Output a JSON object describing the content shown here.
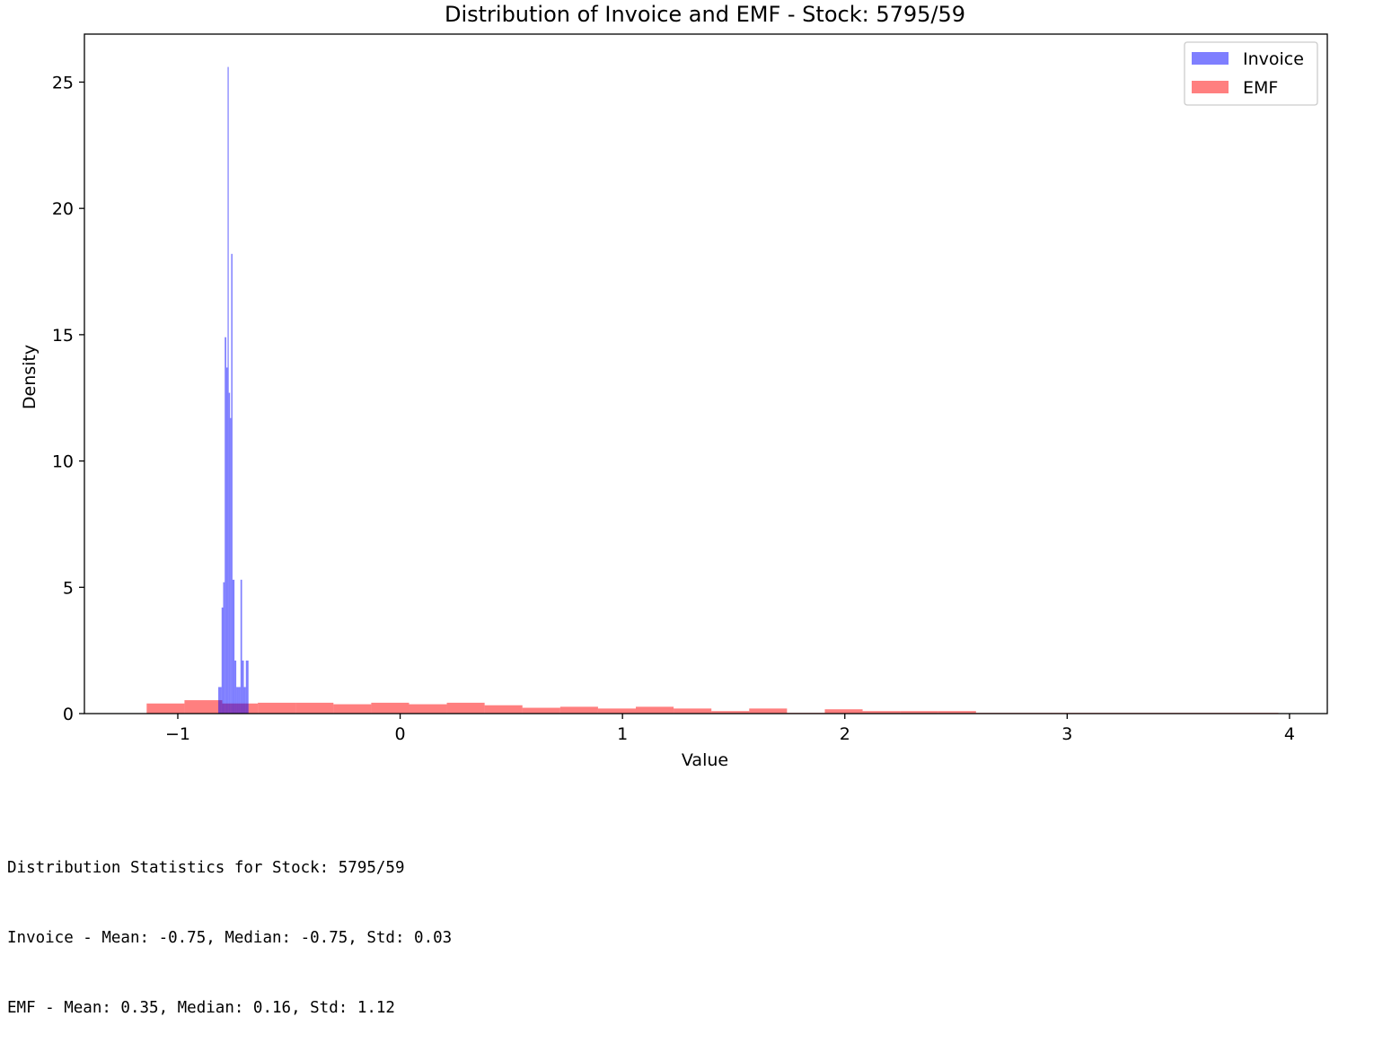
{
  "chart_data": {
    "type": "histogram",
    "title": "Distribution of Invoice and EMF - Stock: 5795/59",
    "xlabel": "Value",
    "ylabel": "Density",
    "xlim": [
      -1.42,
      4.17
    ],
    "ylim": [
      0,
      26.9
    ],
    "xticks": [
      -1,
      0,
      1,
      2,
      3,
      4
    ],
    "xtick_labels": [
      "−1",
      "0",
      "1",
      "2",
      "3",
      "4"
    ],
    "yticks": [
      0,
      5,
      10,
      15,
      20,
      25
    ],
    "ytick_labels": [
      "0",
      "5",
      "10",
      "15",
      "20",
      "25"
    ],
    "grid": false,
    "legend_position": "top-right",
    "series": [
      {
        "name": "Invoice",
        "color": "#0000ff",
        "opacity": 0.5,
        "bins": [
          [
            -0.818,
            -0.81,
            1.05
          ],
          [
            -0.81,
            -0.803,
            1.05
          ],
          [
            -0.803,
            -0.796,
            4.2
          ],
          [
            -0.796,
            -0.789,
            5.2
          ],
          [
            -0.789,
            -0.782,
            14.9
          ],
          [
            -0.782,
            -0.776,
            13.7
          ],
          [
            -0.776,
            -0.771,
            25.6
          ],
          [
            -0.771,
            -0.765,
            12.7
          ],
          [
            -0.765,
            -0.76,
            11.7
          ],
          [
            -0.76,
            -0.754,
            18.2
          ],
          [
            -0.754,
            -0.745,
            5.3
          ],
          [
            -0.745,
            -0.737,
            2.1
          ],
          [
            -0.737,
            -0.727,
            1.05
          ],
          [
            -0.727,
            -0.718,
            1.05
          ],
          [
            -0.718,
            -0.711,
            5.3
          ],
          [
            -0.711,
            -0.703,
            2.1
          ],
          [
            -0.703,
            -0.694,
            1.05
          ],
          [
            -0.694,
            -0.682,
            2.1
          ]
        ]
      },
      {
        "name": "EMF",
        "color": "#ff0000",
        "opacity": 0.5,
        "bins": [
          [
            -1.14,
            -0.97,
            0.4
          ],
          [
            -0.97,
            -0.8,
            0.53
          ],
          [
            -0.8,
            -0.64,
            0.4
          ],
          [
            -0.64,
            -0.47,
            0.43
          ],
          [
            -0.47,
            -0.3,
            0.43
          ],
          [
            -0.3,
            -0.13,
            0.37
          ],
          [
            -0.13,
            0.04,
            0.43
          ],
          [
            0.04,
            0.21,
            0.37
          ],
          [
            0.21,
            0.38,
            0.43
          ],
          [
            0.38,
            0.55,
            0.33
          ],
          [
            0.55,
            0.72,
            0.23
          ],
          [
            0.72,
            0.89,
            0.27
          ],
          [
            0.89,
            1.06,
            0.2
          ],
          [
            1.06,
            1.23,
            0.27
          ],
          [
            1.23,
            1.4,
            0.2
          ],
          [
            1.4,
            1.57,
            0.1
          ],
          [
            1.57,
            1.74,
            0.2
          ],
          [
            1.74,
            1.91,
            0.03
          ],
          [
            1.91,
            2.08,
            0.17
          ],
          [
            2.08,
            2.25,
            0.1
          ],
          [
            2.25,
            2.42,
            0.1
          ],
          [
            2.42,
            2.59,
            0.1
          ],
          [
            2.59,
            2.76,
            0.03
          ],
          [
            2.76,
            2.93,
            0.03
          ],
          [
            2.93,
            3.1,
            0.03
          ],
          [
            3.1,
            3.27,
            0.03
          ],
          [
            3.27,
            3.44,
            0.03
          ],
          [
            3.44,
            3.61,
            0.03
          ],
          [
            3.61,
            3.78,
            0.03
          ],
          [
            3.78,
            3.95,
            0.03
          ]
        ]
      }
    ]
  },
  "stats_output": {
    "line1": "Distribution Statistics for Stock: 5795/59",
    "line2": "Invoice - Mean: -0.75, Median: -0.75, Std: 0.03",
    "line3": "EMF - Mean: 0.35, Median: 0.16, Std: 1.12"
  }
}
